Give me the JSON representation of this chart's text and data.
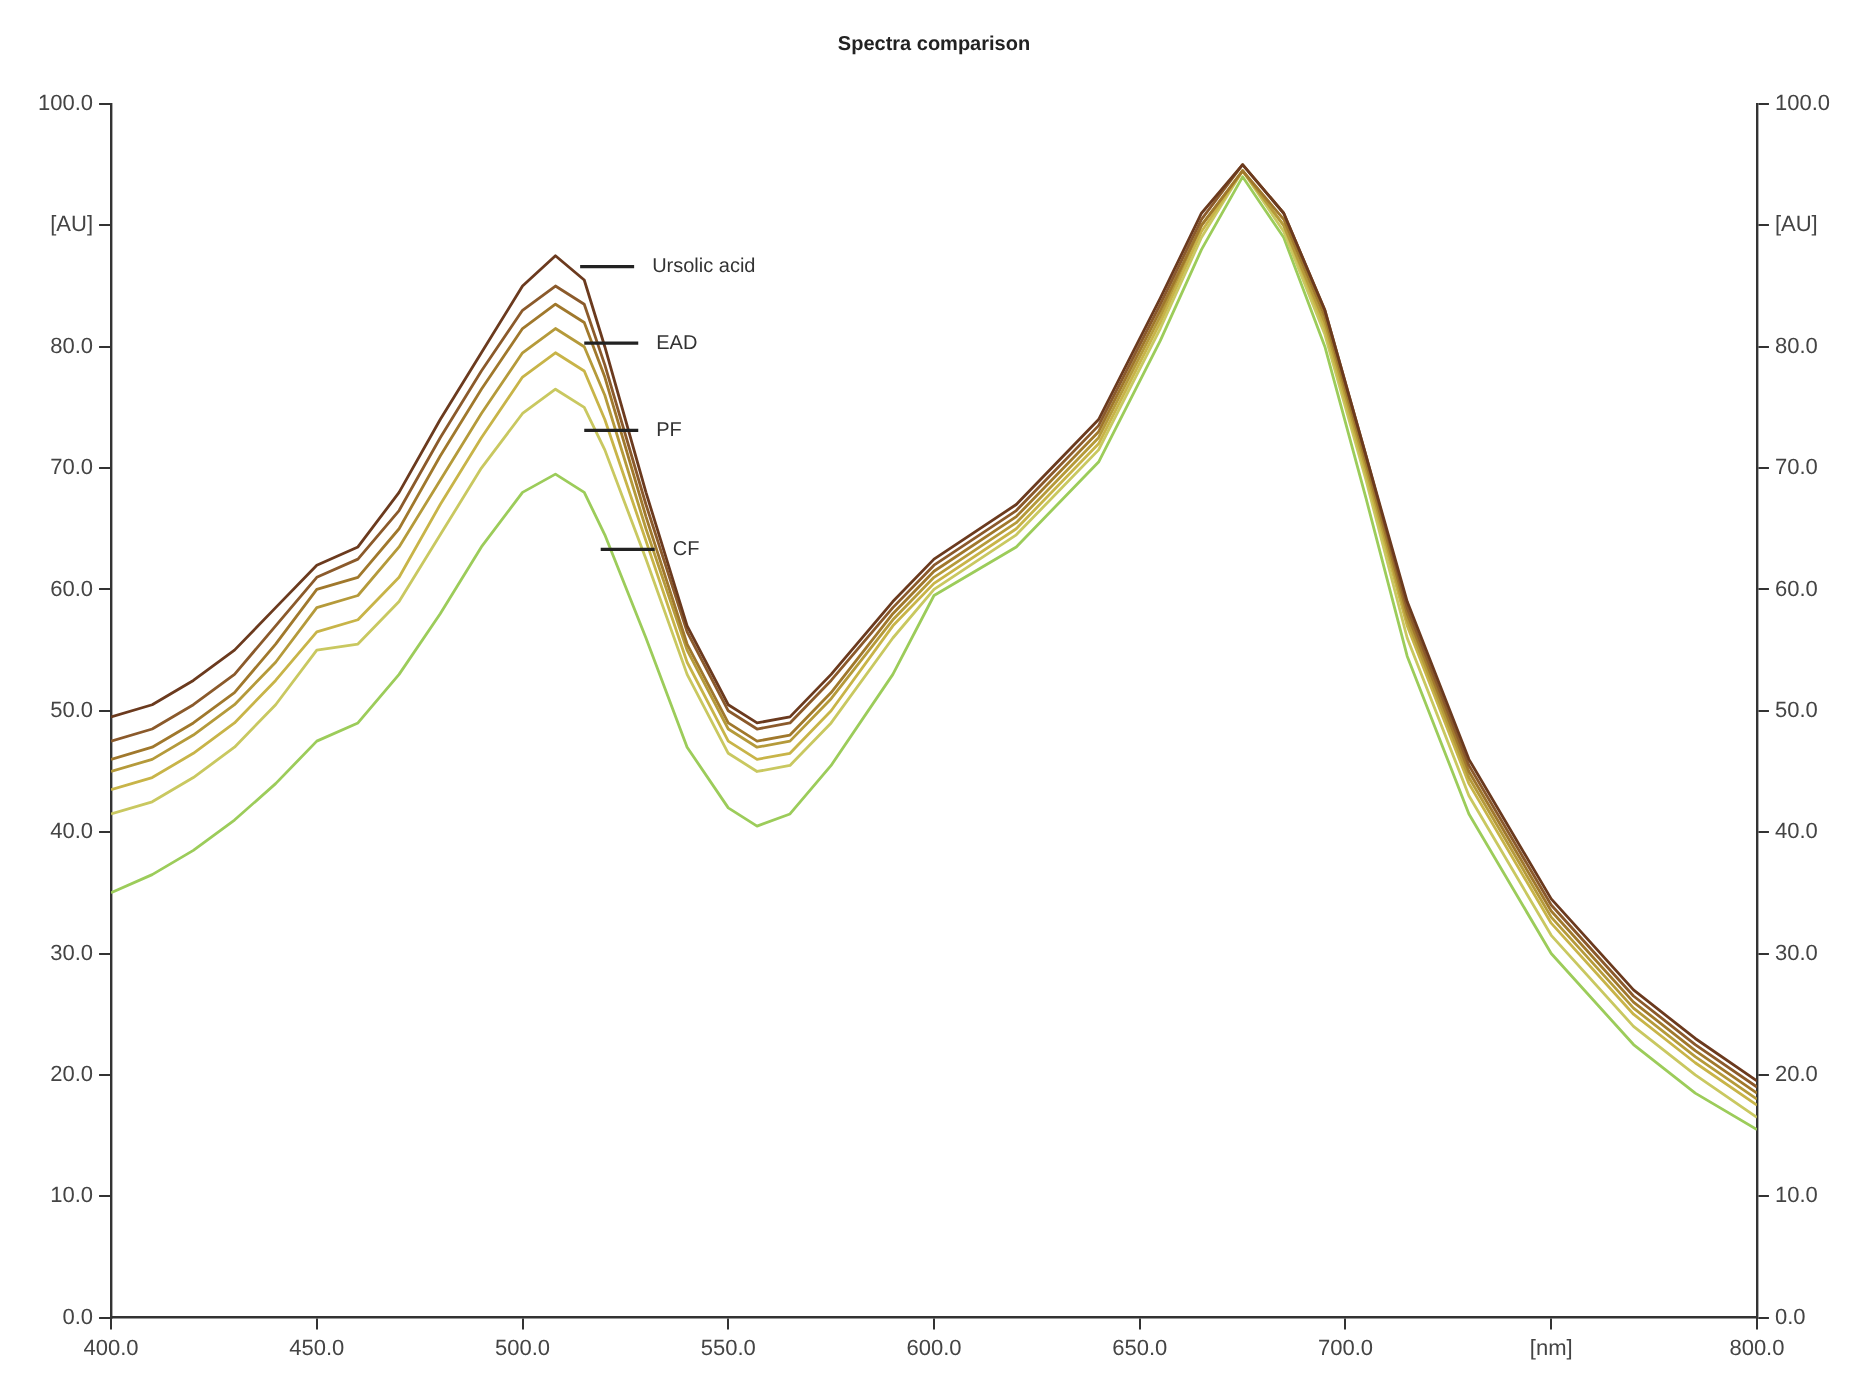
{
  "chart_data": {
    "type": "line",
    "title": "Spectra comparison",
    "x": [
      400,
      410,
      420,
      430,
      440,
      450,
      460,
      470,
      480,
      490,
      500,
      508,
      515,
      520,
      530,
      540,
      550,
      557,
      565,
      575,
      590,
      600,
      620,
      640,
      655,
      665,
      675,
      685,
      695,
      705,
      715,
      730,
      750,
      770,
      785,
      800
    ],
    "series": [
      {
        "color": "#6b3a1e",
        "values": [
          49.5,
          50.5,
          52.5,
          55,
          58.5,
          62,
          63.5,
          68,
          74,
          79.5,
          85,
          87.5,
          85.5,
          80,
          68,
          57,
          50.5,
          49,
          49.5,
          53,
          59,
          62.5,
          67,
          74,
          84,
          91,
          95,
          91,
          83,
          71,
          59,
          46,
          34.5,
          27,
          23,
          19.5
        ]
      },
      {
        "color": "#8b5a2b",
        "values": [
          47.5,
          48.5,
          50.5,
          53,
          57,
          61,
          62.5,
          66.5,
          72.5,
          78,
          83,
          85,
          83.5,
          78.5,
          67,
          56.5,
          50,
          48.5,
          49,
          52.5,
          58.5,
          62,
          66.5,
          73.5,
          83.5,
          90.5,
          95,
          91,
          83,
          71,
          58.5,
          45.5,
          34,
          26.5,
          22.5,
          19
        ]
      },
      {
        "color": "#a0782c",
        "values": [
          46,
          47,
          49,
          51.5,
          55.5,
          60,
          61,
          65,
          71,
          76.5,
          81.5,
          83.5,
          82,
          77.5,
          66,
          55.5,
          49,
          47.5,
          48,
          51.5,
          58,
          61.5,
          66,
          73,
          83,
          90,
          94.5,
          90.5,
          82.5,
          70.5,
          58,
          45,
          33.5,
          26,
          22,
          18.5
        ]
      },
      {
        "color": "#b59a3a",
        "values": [
          45,
          46,
          48,
          50.5,
          54,
          58.5,
          59.5,
          63.5,
          69,
          74.5,
          79.5,
          81.5,
          80,
          76,
          65,
          55,
          48.5,
          47,
          47.5,
          51,
          57.5,
          61,
          65.5,
          72.5,
          82.5,
          90,
          94.5,
          90,
          82,
          70,
          57.5,
          44.5,
          33,
          25.5,
          21.5,
          18
        ]
      },
      {
        "color": "#c8b448",
        "values": [
          43.5,
          44.5,
          46.5,
          49,
          52.5,
          56.5,
          57.5,
          61,
          67,
          72.5,
          77.5,
          79.5,
          78,
          74,
          64,
          54,
          47.5,
          46,
          46.5,
          50,
          57,
          60.5,
          65,
          72,
          82,
          89.5,
          94.5,
          90,
          81.5,
          69.5,
          57,
          44,
          32.5,
          25,
          21,
          17.5
        ]
      },
      {
        "color": "#c9c860",
        "values": [
          41.5,
          42.5,
          44.5,
          47,
          50.5,
          55,
          55.5,
          59,
          64.5,
          70,
          74.5,
          76.5,
          75,
          71.5,
          62.5,
          53,
          46.5,
          45,
          45.5,
          49,
          56,
          60,
          64.5,
          71.5,
          81.5,
          89,
          94.5,
          89.5,
          81,
          69,
          56,
          43,
          31.5,
          24,
          20,
          16.5
        ]
      },
      {
        "color": "#9ccc5a",
        "values": [
          35,
          36.5,
          38.5,
          41,
          44,
          47.5,
          49,
          53,
          58,
          63.5,
          68,
          69.5,
          68,
          64.5,
          56,
          47,
          42,
          40.5,
          41.5,
          45.5,
          53,
          59.5,
          63.5,
          70.5,
          80.5,
          88,
          94,
          89,
          80,
          67.5,
          54.5,
          41.5,
          30,
          22.5,
          18.5,
          15.5
        ]
      }
    ],
    "annotations": [
      {
        "text": "Ursolic acid",
        "x": 514,
        "y": 86.6
      },
      {
        "text": "EAD",
        "x": 515,
        "y": 80.3
      },
      {
        "text": "PF",
        "x": 515,
        "y": 73.1
      },
      {
        "text": "CF",
        "x": 519,
        "y": 63.3
      }
    ],
    "xlim": [
      400,
      800
    ],
    "xticks": [
      {
        "value": 400,
        "label": "400.0"
      },
      {
        "value": 450,
        "label": "450.0"
      },
      {
        "value": 500,
        "label": "500.0"
      },
      {
        "value": 550,
        "label": "550.0"
      },
      {
        "value": 600,
        "label": "600.0"
      },
      {
        "value": 650,
        "label": "650.0"
      },
      {
        "value": 700,
        "label": "700.0"
      },
      {
        "value": 750,
        "label": "[nm]"
      },
      {
        "value": 800,
        "label": "800.0"
      }
    ],
    "ylim": [
      0,
      100
    ],
    "yticks": [
      {
        "value": 0,
        "label": "0.0"
      },
      {
        "value": 10,
        "label": "10.0"
      },
      {
        "value": 20,
        "label": "20.0"
      },
      {
        "value": 30,
        "label": "30.0"
      },
      {
        "value": 40,
        "label": "40.0"
      },
      {
        "value": 50,
        "label": "50.0"
      },
      {
        "value": 60,
        "label": "60.0"
      },
      {
        "value": 70,
        "label": "70.0"
      },
      {
        "value": 80,
        "label": "80.0"
      },
      {
        "value": 90,
        "label": "[AU]"
      },
      {
        "value": 100,
        "label": "100.0"
      }
    ],
    "y2lim": [
      0,
      100
    ],
    "y2ticks": [
      {
        "value": 0,
        "label": "0.0"
      },
      {
        "value": 10,
        "label": "10.0"
      },
      {
        "value": 20,
        "label": "20.0"
      },
      {
        "value": 30,
        "label": "30.0"
      },
      {
        "value": 40,
        "label": "40.0"
      },
      {
        "value": 50,
        "label": "50.0"
      },
      {
        "value": 60,
        "label": "60.0"
      },
      {
        "value": 70,
        "label": "70.0"
      },
      {
        "value": 80,
        "label": "80.0"
      },
      {
        "value": 90,
        "label": "[AU]"
      },
      {
        "value": 100,
        "label": "100.0"
      }
    ],
    "grid": false,
    "legend": false,
    "marker": "none",
    "line_style": "solid"
  }
}
